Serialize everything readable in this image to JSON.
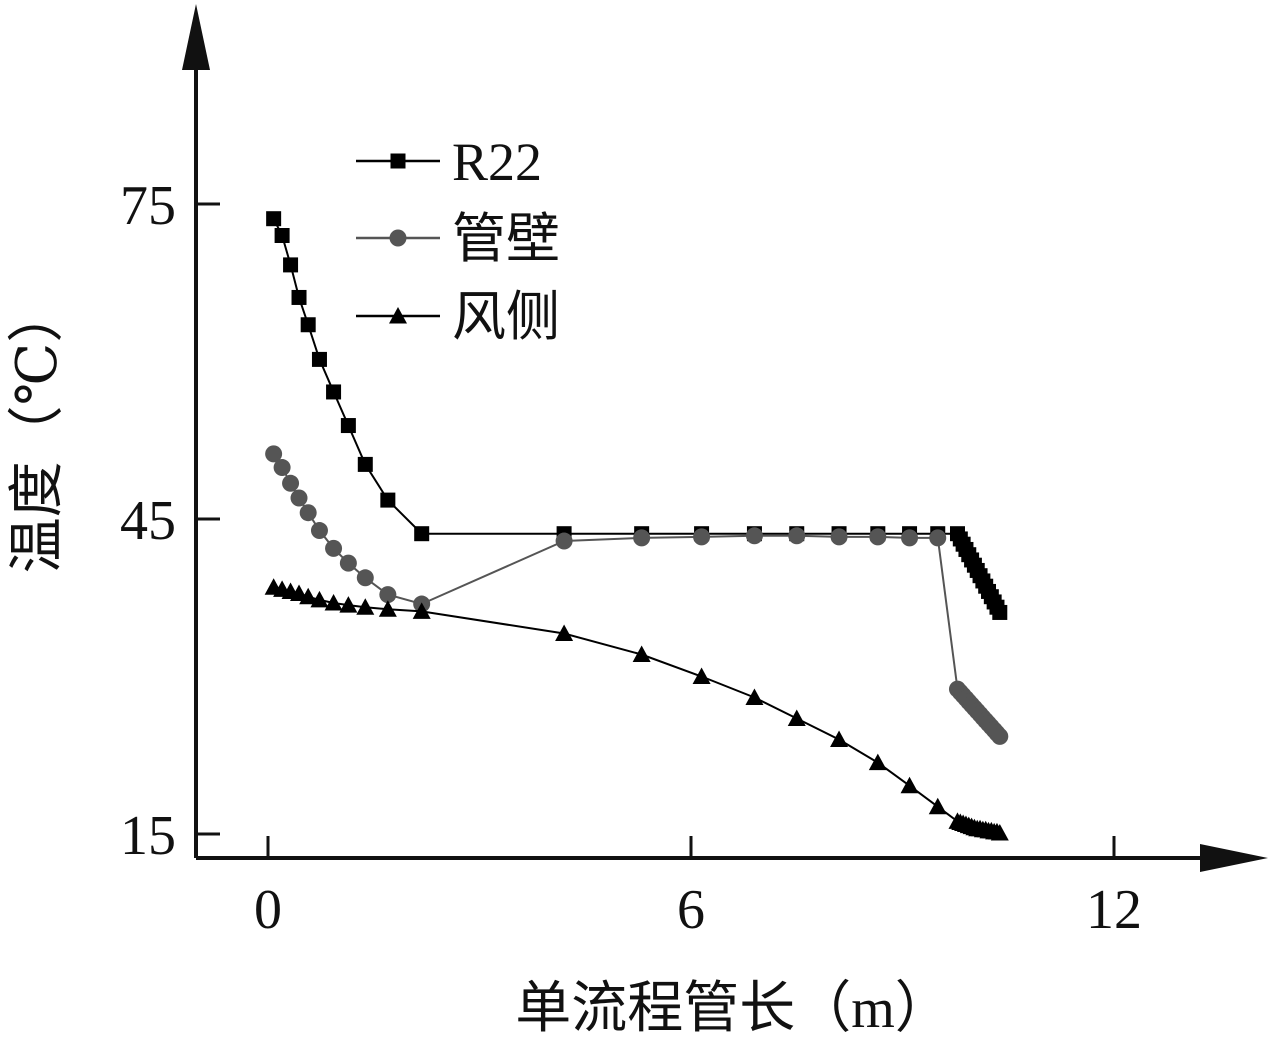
{
  "chart_data": {
    "type": "line",
    "xlabel": "单流程管长（m）",
    "ylabel": "温度（℃）",
    "x_ticks": [
      0,
      6,
      12
    ],
    "y_ticks": [
      15,
      45,
      75
    ],
    "xlim": [
      -1,
      12.6
    ],
    "ylim": [
      12.5,
      93
    ],
    "legend_position": "top-left",
    "grid": false,
    "series": [
      {
        "name": "R22",
        "marker": "square",
        "color": "#000000",
        "x": [
          0.08,
          0.2,
          0.32,
          0.44,
          0.57,
          0.73,
          0.93,
          1.14,
          1.38,
          1.7,
          2.18,
          4.2,
          5.3,
          6.15,
          6.9,
          7.5,
          8.1,
          8.65,
          9.1,
          9.5,
          9.78,
          9.82,
          9.86,
          9.9,
          9.94,
          9.98,
          10.02,
          10.06,
          10.1,
          10.14,
          10.18,
          10.22,
          10.26,
          10.3,
          10.34,
          10.38
        ],
        "y": [
          73.6,
          72.0,
          69.2,
          66.1,
          63.5,
          60.2,
          57.1,
          53.9,
          50.2,
          46.8,
          43.6,
          43.6,
          43.6,
          43.6,
          43.6,
          43.6,
          43.6,
          43.6,
          43.6,
          43.6,
          43.6,
          43.1,
          42.6,
          42.1,
          41.6,
          41.1,
          40.6,
          40.1,
          39.6,
          39.1,
          38.6,
          38.1,
          37.6,
          37.1,
          36.6,
          36.1
        ]
      },
      {
        "name": "管壁",
        "marker": "circle",
        "color": "#555555",
        "x": [
          0.08,
          0.2,
          0.32,
          0.44,
          0.57,
          0.73,
          0.93,
          1.14,
          1.38,
          1.7,
          2.18,
          4.2,
          5.3,
          6.15,
          6.9,
          7.5,
          8.1,
          8.65,
          9.1,
          9.5,
          9.78,
          9.82,
          9.86,
          9.9,
          9.94,
          9.98,
          10.02,
          10.06,
          10.1,
          10.14,
          10.18,
          10.22,
          10.26,
          10.3,
          10.34,
          10.38
        ],
        "y": [
          51.2,
          49.9,
          48.4,
          47.0,
          45.6,
          43.9,
          42.2,
          40.8,
          39.4,
          37.8,
          36.9,
          42.9,
          43.2,
          43.3,
          43.4,
          43.4,
          43.3,
          43.3,
          43.2,
          43.2,
          28.8,
          28.5,
          28.2,
          27.9,
          27.6,
          27.3,
          27.0,
          26.7,
          26.4,
          26.1,
          25.8,
          25.5,
          25.2,
          24.9,
          24.6,
          24.3
        ]
      },
      {
        "name": "风侧",
        "marker": "triangle",
        "color": "#000000",
        "x": [
          0.08,
          0.2,
          0.32,
          0.44,
          0.57,
          0.73,
          0.93,
          1.14,
          1.38,
          1.7,
          2.18,
          4.2,
          5.3,
          6.15,
          6.9,
          7.5,
          8.1,
          8.65,
          9.1,
          9.5,
          9.78,
          9.82,
          9.86,
          9.9,
          9.94,
          9.98,
          10.02,
          10.06,
          10.1,
          10.14,
          10.18,
          10.22,
          10.26,
          10.3,
          10.34,
          10.38
        ],
        "y": [
          38.5,
          38.3,
          38.1,
          37.9,
          37.6,
          37.3,
          37.0,
          36.8,
          36.6,
          36.4,
          36.2,
          34.1,
          32.1,
          30.0,
          28.0,
          26.0,
          24.0,
          21.8,
          19.6,
          17.6,
          16.2,
          16.1,
          16.0,
          15.9,
          15.8,
          15.7,
          15.6,
          15.5,
          15.5,
          15.4,
          15.4,
          15.3,
          15.3,
          15.2,
          15.2,
          15.1
        ]
      }
    ]
  }
}
